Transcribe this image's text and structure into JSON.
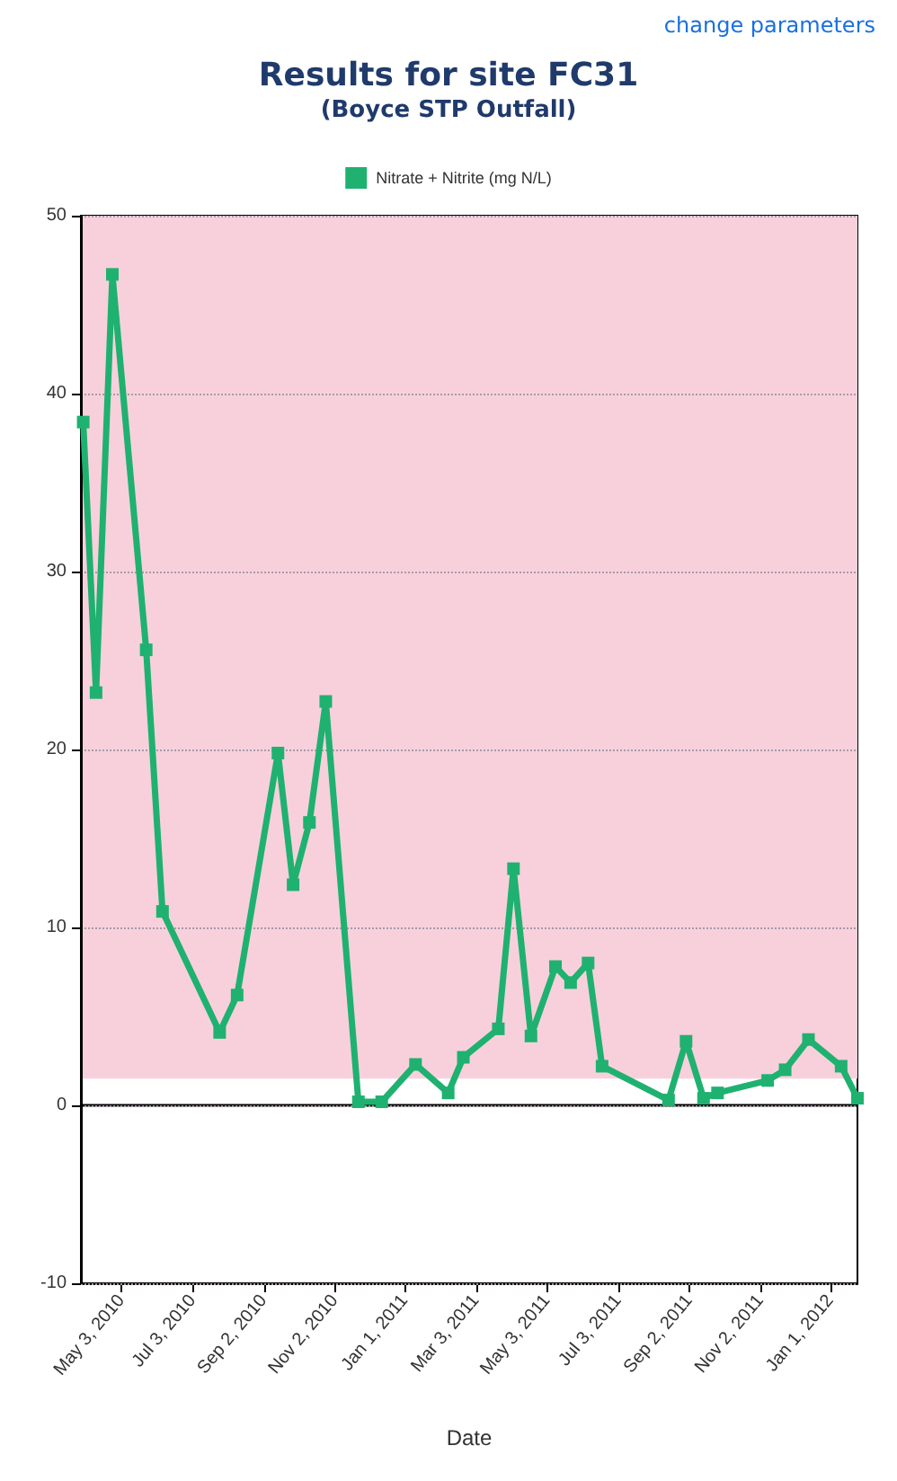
{
  "chart_data": {
    "type": "line",
    "title": "Results for site FC31",
    "subtitle": "(Boyce STP Outfall)",
    "xlabel": "Date",
    "annotations": [
      "change parameters"
    ],
    "x": [
      "2010-03-31",
      "2010-04-11",
      "2010-04-25",
      "2010-05-24",
      "2010-06-07",
      "2010-07-26",
      "2010-08-10",
      "2010-09-14",
      "2010-09-27",
      "2010-10-11",
      "2010-10-25",
      "2010-11-22",
      "2010-12-12",
      "2011-01-10",
      "2011-02-07",
      "2011-02-20",
      "2011-03-22",
      "2011-04-04",
      "2011-04-19",
      "2011-05-10",
      "2011-05-23",
      "2011-06-07",
      "2011-06-19",
      "2011-08-15",
      "2011-08-30",
      "2011-09-14",
      "2011-09-26",
      "2011-11-08",
      "2011-11-23",
      "2011-12-13",
      "2012-01-10",
      "2012-01-24"
    ],
    "series": [
      {
        "name": "Nitrate + Nitrite (mg N/L)",
        "color": "#1fb170",
        "values": [
          38.4,
          23.2,
          46.7,
          25.6,
          10.9,
          4.1,
          6.2,
          19.8,
          12.4,
          15.9,
          22.7,
          0.2,
          0.2,
          2.3,
          0.7,
          2.7,
          4.3,
          13.3,
          3.9,
          7.8,
          6.9,
          8.0,
          2.2,
          0.3,
          3.6,
          0.4,
          0.7,
          1.4,
          2.0,
          3.7,
          2.2,
          0.4
        ]
      }
    ],
    "xlim": [
      "2010-03-29",
      "2012-01-24"
    ],
    "xticks": [
      {
        "value": "2010-05-03",
        "label": "May 3, 2010"
      },
      {
        "value": "2010-07-03",
        "label": "Jul 3, 2010"
      },
      {
        "value": "2010-09-02",
        "label": "Sep 2, 2010"
      },
      {
        "value": "2010-11-02",
        "label": "Nov 2, 2010"
      },
      {
        "value": "2011-01-01",
        "label": "Jan 1, 2011"
      },
      {
        "value": "2011-03-03",
        "label": "Mar 3, 2011"
      },
      {
        "value": "2011-05-03",
        "label": "May 3, 2011"
      },
      {
        "value": "2011-07-03",
        "label": "Jul 3, 2011"
      },
      {
        "value": "2011-09-02",
        "label": "Sep 2, 2011"
      },
      {
        "value": "2011-11-02",
        "label": "Nov 2, 2011"
      },
      {
        "value": "2012-01-01",
        "label": "Jan 1, 2012"
      }
    ],
    "ylim": [
      -10,
      50
    ],
    "yticks": [
      -10,
      0,
      10,
      20,
      30,
      40,
      50
    ],
    "ref_lines": [
      {
        "axis": "y",
        "value": 0,
        "color": "#000000"
      }
    ],
    "bands": [
      {
        "axis": "y",
        "from": 1.5,
        "to": 50,
        "color": "#f8d0dc"
      }
    ],
    "grid": "y",
    "legend": "top",
    "marker": "square",
    "line_style": "solid"
  }
}
